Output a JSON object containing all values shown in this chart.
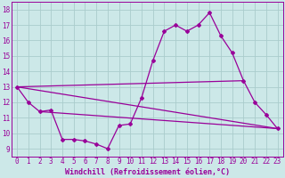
{
  "xlabel": "Windchill (Refroidissement éolien,°C)",
  "bg_color": "#cce8e8",
  "grid_color": "#aacccc",
  "line_color": "#990099",
  "spine_color": "#990099",
  "xlim": [
    -0.5,
    23.5
  ],
  "ylim": [
    8.5,
    18.5
  ],
  "yticks": [
    9,
    10,
    11,
    12,
    13,
    14,
    15,
    16,
    17,
    18
  ],
  "xticks": [
    0,
    1,
    2,
    3,
    4,
    5,
    6,
    7,
    8,
    9,
    10,
    11,
    12,
    13,
    14,
    15,
    16,
    17,
    18,
    19,
    20,
    21,
    22,
    23
  ],
  "line1_x": [
    0,
    1,
    2,
    3,
    4,
    5,
    6,
    7,
    8,
    9,
    10,
    11,
    12,
    13,
    14,
    15,
    16,
    17,
    18,
    19,
    20,
    21,
    22,
    23
  ],
  "line1_y": [
    13,
    12,
    11.4,
    11.5,
    9.6,
    9.6,
    9.5,
    9.3,
    9.0,
    10.5,
    10.6,
    12.3,
    14.7,
    16.6,
    17.0,
    16.6,
    17.0,
    17.8,
    16.3,
    15.2,
    13.4,
    12.0,
    11.2,
    10.3
  ],
  "line2_x": [
    0,
    23
  ],
  "line2_y": [
    13.0,
    10.3
  ],
  "line3_x": [
    2,
    23
  ],
  "line3_y": [
    11.4,
    10.3
  ],
  "line4_x": [
    0,
    20
  ],
  "line4_y": [
    13.0,
    13.4
  ],
  "tick_fontsize": 5.5,
  "xlabel_fontsize": 6.0
}
